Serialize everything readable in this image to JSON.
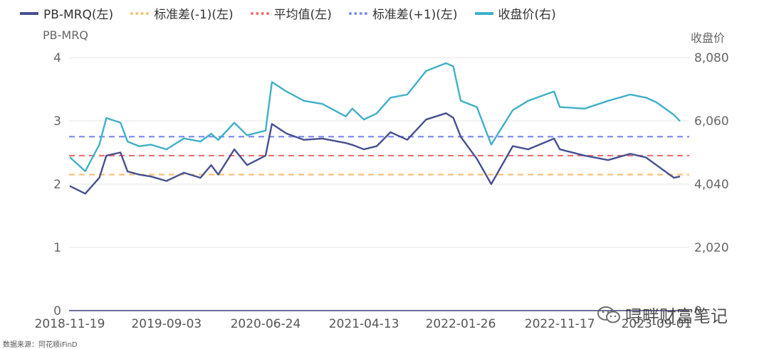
{
  "legend": [
    {
      "label": "PB-MRQ(左)",
      "color": "#46508f",
      "style": "solid"
    },
    {
      "label": "标准差(-1)(左)",
      "color": "#f5c17a",
      "style": "dashed"
    },
    {
      "label": "平均值(左)",
      "color": "#ef6e6e",
      "style": "dashed"
    },
    {
      "label": "标准差(+1)(左)",
      "color": "#7f8cf0",
      "style": "dashed"
    },
    {
      "label": "收盘价(右)",
      "color": "#3fb0c8",
      "style": "solid"
    }
  ],
  "axis_titles": {
    "left": "PB-MRQ",
    "right": "收盘价"
  },
  "source": "数据来源：同花顺iFinD",
  "watermark": "㖊畔财富笔记",
  "chart_data": {
    "type": "line",
    "xlabel": "",
    "ylabel": "PB-MRQ",
    "y2label": "收盘价",
    "x_ticks": [
      "2018-11-19",
      "2019-09-03",
      "2020-06-24",
      "2021-04-13",
      "2022-01-26",
      "2022-11-17",
      "2023-09-01"
    ],
    "y_left_ticks": [
      0,
      1,
      2,
      3,
      4
    ],
    "y_left_range": [
      0,
      4
    ],
    "y_right_ticks": [
      "0",
      "2,020",
      "4,040",
      "6,060",
      "8,080"
    ],
    "y_right_range": [
      0,
      8080
    ],
    "reference_lines": {
      "std_minus_1": 2.15,
      "mean": 2.45,
      "std_plus_1": 2.75
    },
    "series": [
      {
        "name": "PB-MRQ(左)",
        "axis": "left",
        "x": [
          "2018-11-19",
          "2019-01-04",
          "2019-02-15",
          "2019-03-08",
          "2019-04-19",
          "2019-05-10",
          "2019-06-14",
          "2019-07-19",
          "2019-09-03",
          "2019-10-25",
          "2019-12-13",
          "2020-01-14",
          "2020-02-04",
          "2020-03-23",
          "2020-04-30",
          "2020-06-24",
          "2020-07-13",
          "2020-08-25",
          "2020-10-16",
          "2020-12-10",
          "2021-02-18",
          "2021-03-09",
          "2021-04-13",
          "2021-05-21",
          "2021-07-01",
          "2021-08-20",
          "2021-10-15",
          "2021-12-13",
          "2022-01-04",
          "2022-01-26",
          "2022-03-15",
          "2022-04-27",
          "2022-06-30",
          "2022-08-15",
          "2022-10-31",
          "2022-11-17",
          "2023-01-30",
          "2023-04-10",
          "2023-06-15",
          "2023-08-01",
          "2023-09-01",
          "2023-10-23",
          "2023-11-10"
        ],
        "values": [
          1.97,
          1.85,
          2.1,
          2.45,
          2.5,
          2.2,
          2.15,
          2.12,
          2.05,
          2.18,
          2.1,
          2.3,
          2.15,
          2.55,
          2.3,
          2.45,
          2.95,
          2.8,
          2.7,
          2.72,
          2.65,
          2.62,
          2.55,
          2.6,
          2.82,
          2.7,
          3.02,
          3.12,
          3.05,
          2.75,
          2.4,
          2.0,
          2.6,
          2.55,
          2.72,
          2.55,
          2.45,
          2.38,
          2.48,
          2.42,
          2.3,
          2.1,
          2.12
        ]
      },
      {
        "name": "收盘价(右)",
        "axis": "right",
        "x": [
          "2018-11-19",
          "2019-01-04",
          "2019-02-15",
          "2019-03-08",
          "2019-04-19",
          "2019-05-10",
          "2019-06-14",
          "2019-07-19",
          "2019-09-03",
          "2019-10-25",
          "2019-12-13",
          "2020-01-14",
          "2020-02-04",
          "2020-03-23",
          "2020-04-30",
          "2020-06-24",
          "2020-07-13",
          "2020-08-25",
          "2020-10-16",
          "2020-12-10",
          "2021-02-18",
          "2021-03-09",
          "2021-04-13",
          "2021-05-21",
          "2021-07-01",
          "2021-08-20",
          "2021-10-15",
          "2021-12-13",
          "2022-01-04",
          "2022-01-26",
          "2022-03-15",
          "2022-04-27",
          "2022-06-30",
          "2022-08-15",
          "2022-10-31",
          "2022-11-17",
          "2023-01-30",
          "2023-04-10",
          "2023-06-15",
          "2023-08-01",
          "2023-09-01",
          "2023-10-23",
          "2023-11-10"
        ],
        "values": [
          4900,
          4450,
          5300,
          6150,
          6000,
          5400,
          5250,
          5300,
          5150,
          5500,
          5400,
          5650,
          5450,
          6000,
          5600,
          5750,
          7300,
          7000,
          6700,
          6600,
          6200,
          6450,
          6100,
          6300,
          6800,
          6900,
          7650,
          7900,
          7800,
          6700,
          6500,
          5300,
          6400,
          6700,
          7000,
          6500,
          6450,
          6700,
          6900,
          6800,
          6650,
          6250,
          6050
        ]
      }
    ]
  }
}
